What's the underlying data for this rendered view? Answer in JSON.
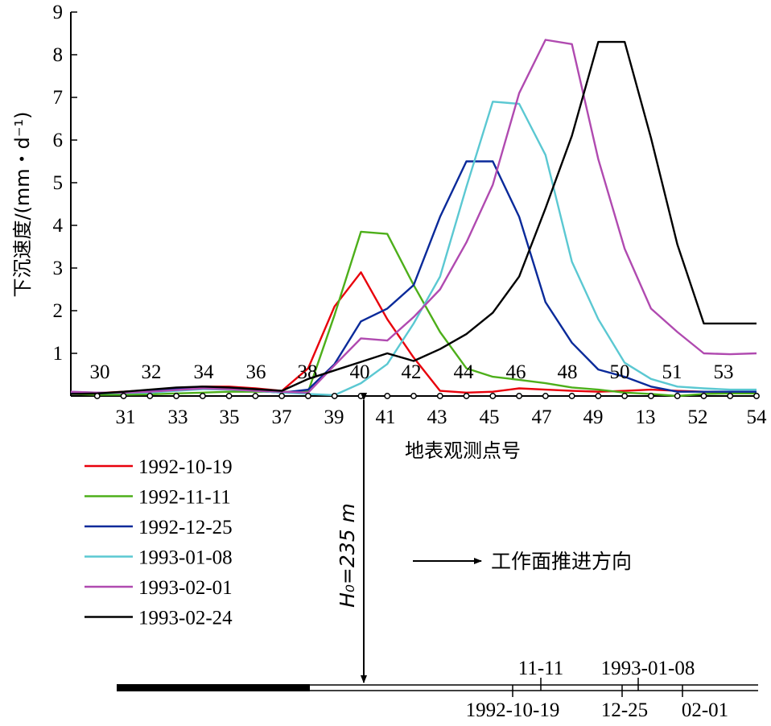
{
  "chart_data": {
    "type": "line",
    "ylabel": "下沉速度/(mm・d⁻¹)",
    "xlabel": "地表观测点号",
    "ylim": [
      0,
      9
    ],
    "yticks": [
      "1",
      "2",
      "3",
      "4",
      "5",
      "6",
      "7",
      "8",
      "9"
    ],
    "grid": false,
    "legend_position": "bottom-left",
    "point_labels_top": [
      "30",
      "32",
      "34",
      "36",
      "38",
      "40",
      "42",
      "44",
      "46",
      "48",
      "50",
      "51",
      "53"
    ],
    "point_labels_bottom": [
      "31",
      "33",
      "35",
      "37",
      "39",
      "41",
      "43",
      "45",
      "47",
      "49",
      "13",
      "52",
      "54"
    ],
    "series": [
      {
        "name": "1992-10-19",
        "color": "#e8000b",
        "values": [
          0.08,
          0.07,
          0.1,
          0.14,
          0.18,
          0.22,
          0.22,
          0.18,
          0.12,
          0.65,
          2.1,
          2.9,
          1.8,
          0.9,
          0.12,
          0.08,
          0.1,
          0.18,
          0.15,
          0.12,
          0.1,
          0.12,
          0.15,
          0.12,
          0.1,
          0.1,
          0.1
        ]
      },
      {
        "name": "1992-11-11",
        "color": "#4daf1a",
        "values": [
          0.05,
          0.03,
          0.03,
          0.04,
          0.06,
          0.08,
          0.1,
          0.1,
          0.1,
          0.1,
          1.9,
          3.85,
          3.8,
          2.6,
          1.5,
          0.65,
          0.45,
          0.38,
          0.3,
          0.2,
          0.15,
          0.08,
          0.05,
          0.0,
          0.05,
          0.06,
          0.06
        ]
      },
      {
        "name": "1992-12-25",
        "color": "#0a2a9a",
        "values": [
          0.06,
          0.06,
          0.08,
          0.12,
          0.16,
          0.18,
          0.16,
          0.12,
          0.08,
          0.15,
          0.75,
          1.75,
          2.05,
          2.6,
          4.2,
          5.5,
          5.5,
          4.2,
          2.2,
          1.25,
          0.62,
          0.45,
          0.22,
          0.1,
          0.1,
          0.1,
          0.1
        ]
      },
      {
        "name": "1993-01-08",
        "color": "#5bc8d2",
        "values": [
          0.1,
          0.08,
          0.07,
          0.08,
          0.12,
          0.16,
          0.15,
          0.12,
          0.08,
          0.05,
          0.02,
          0.3,
          0.75,
          1.7,
          2.8,
          4.9,
          6.9,
          6.85,
          5.65,
          3.15,
          1.8,
          0.78,
          0.4,
          0.22,
          0.18,
          0.15,
          0.15
        ]
      },
      {
        "name": "1993-02-01",
        "color": "#b04ab0",
        "values": [
          0.1,
          0.08,
          0.08,
          0.1,
          0.14,
          0.18,
          0.16,
          0.12,
          0.1,
          0.08,
          0.72,
          1.35,
          1.3,
          1.85,
          2.5,
          3.6,
          4.95,
          7.1,
          8.35,
          8.25,
          5.55,
          3.45,
          2.05,
          1.5,
          1.0,
          0.98,
          1.0
        ]
      },
      {
        "name": "1993-02-24",
        "color": "#000000",
        "values": [
          0.05,
          0.06,
          0.1,
          0.15,
          0.2,
          0.22,
          0.2,
          0.16,
          0.12,
          0.4,
          0.6,
          0.8,
          1.0,
          0.82,
          1.1,
          1.45,
          1.95,
          2.8,
          4.4,
          6.1,
          8.3,
          8.3,
          6.05,
          3.55,
          1.7,
          1.7,
          1.7
        ]
      }
    ]
  },
  "direction_label": "工作面推进方向",
  "h0_label": "H₀=235 m",
  "face_dates": {
    "top": [
      "11-11",
      "1993-01-08"
    ],
    "bottom": [
      "1992-10-19",
      "12-25",
      "02-01"
    ]
  }
}
